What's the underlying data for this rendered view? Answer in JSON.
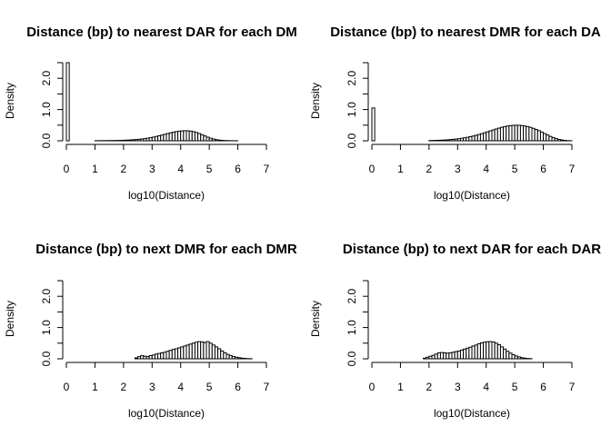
{
  "chart_data": [
    {
      "type": "bar",
      "title": "Distance (bp) to nearest DAR for each DM",
      "xlabel": "log10(Distance)",
      "ylabel": "Density",
      "xlim": [
        0,
        7
      ],
      "ylim": [
        0,
        2.5
      ],
      "xticks": [
        "0",
        "1",
        "2",
        "3",
        "4",
        "5",
        "6",
        "7"
      ],
      "yticks": [
        "0.0",
        "1.0",
        "2.0"
      ],
      "bin_width": 0.1,
      "bins": [
        [
          0.0,
          2.5
        ],
        [
          1.0,
          0.003
        ],
        [
          1.1,
          0.003
        ],
        [
          1.2,
          0.004
        ],
        [
          1.3,
          0.005
        ],
        [
          1.4,
          0.006
        ],
        [
          1.5,
          0.007
        ],
        [
          1.6,
          0.008
        ],
        [
          1.7,
          0.01
        ],
        [
          1.8,
          0.012
        ],
        [
          1.9,
          0.015
        ],
        [
          2.0,
          0.018
        ],
        [
          2.1,
          0.022
        ],
        [
          2.2,
          0.027
        ],
        [
          2.3,
          0.033
        ],
        [
          2.4,
          0.04
        ],
        [
          2.5,
          0.048
        ],
        [
          2.6,
          0.058
        ],
        [
          2.7,
          0.07
        ],
        [
          2.8,
          0.084
        ],
        [
          2.9,
          0.1
        ],
        [
          3.0,
          0.118
        ],
        [
          3.1,
          0.138
        ],
        [
          3.2,
          0.16
        ],
        [
          3.3,
          0.183
        ],
        [
          3.4,
          0.207
        ],
        [
          3.5,
          0.231
        ],
        [
          3.6,
          0.254
        ],
        [
          3.7,
          0.275
        ],
        [
          3.8,
          0.293
        ],
        [
          3.9,
          0.307
        ],
        [
          4.0,
          0.317
        ],
        [
          4.1,
          0.322
        ],
        [
          4.2,
          0.32
        ],
        [
          4.3,
          0.31
        ],
        [
          4.4,
          0.292
        ],
        [
          4.5,
          0.266
        ],
        [
          4.6,
          0.232
        ],
        [
          4.7,
          0.194
        ],
        [
          4.8,
          0.154
        ],
        [
          4.9,
          0.116
        ],
        [
          5.0,
          0.083
        ],
        [
          5.1,
          0.056
        ],
        [
          5.2,
          0.036
        ],
        [
          5.3,
          0.022
        ],
        [
          5.4,
          0.013
        ],
        [
          5.5,
          0.008
        ],
        [
          5.6,
          0.005
        ],
        [
          5.7,
          0.003
        ],
        [
          5.8,
          0.002
        ],
        [
          5.9,
          0.001
        ]
      ]
    },
    {
      "type": "bar",
      "title": "Distance (bp) to nearest DMR for each DA",
      "xlabel": "log10(Distance)",
      "ylabel": "Density",
      "xlim": [
        0,
        7
      ],
      "ylim": [
        0,
        2.5
      ],
      "xticks": [
        "0",
        "1",
        "2",
        "3",
        "4",
        "5",
        "6",
        "7"
      ],
      "yticks": [
        "0.0",
        "1.0",
        "2.0"
      ],
      "bin_width": 0.1,
      "bins": [
        [
          0.0,
          1.05
        ],
        [
          2.0,
          0.008
        ],
        [
          2.1,
          0.01
        ],
        [
          2.2,
          0.013
        ],
        [
          2.3,
          0.016
        ],
        [
          2.4,
          0.02
        ],
        [
          2.5,
          0.025
        ],
        [
          2.6,
          0.031
        ],
        [
          2.7,
          0.038
        ],
        [
          2.8,
          0.046
        ],
        [
          2.9,
          0.056
        ],
        [
          3.0,
          0.067
        ],
        [
          3.1,
          0.08
        ],
        [
          3.2,
          0.095
        ],
        [
          3.3,
          0.112
        ],
        [
          3.4,
          0.131
        ],
        [
          3.5,
          0.152
        ],
        [
          3.6,
          0.176
        ],
        [
          3.7,
          0.201
        ],
        [
          3.8,
          0.228
        ],
        [
          3.9,
          0.257
        ],
        [
          4.0,
          0.287
        ],
        [
          4.1,
          0.317
        ],
        [
          4.2,
          0.347
        ],
        [
          4.3,
          0.377
        ],
        [
          4.4,
          0.405
        ],
        [
          4.5,
          0.43
        ],
        [
          4.6,
          0.453
        ],
        [
          4.7,
          0.471
        ],
        [
          4.8,
          0.485
        ],
        [
          4.9,
          0.494
        ],
        [
          5.0,
          0.498
        ],
        [
          5.1,
          0.496
        ],
        [
          5.2,
          0.488
        ],
        [
          5.3,
          0.474
        ],
        [
          5.4,
          0.455
        ],
        [
          5.5,
          0.43
        ],
        [
          5.6,
          0.399
        ],
        [
          5.7,
          0.363
        ],
        [
          5.8,
          0.323
        ],
        [
          5.9,
          0.278
        ],
        [
          6.0,
          0.232
        ],
        [
          6.1,
          0.185
        ],
        [
          6.2,
          0.14
        ],
        [
          6.3,
          0.1
        ],
        [
          6.4,
          0.068
        ],
        [
          6.5,
          0.043
        ],
        [
          6.6,
          0.025
        ],
        [
          6.7,
          0.013
        ],
        [
          6.8,
          0.006
        ],
        [
          6.9,
          0.002
        ]
      ]
    },
    {
      "type": "bar",
      "title": "Distance (bp) to next DMR for each DMR",
      "xlabel": "log10(Distance)",
      "ylabel": "Density",
      "xlim": [
        0,
        7
      ],
      "ylim": [
        0,
        2.5
      ],
      "xticks": [
        "0",
        "1",
        "2",
        "3",
        "4",
        "5",
        "6",
        "7"
      ],
      "yticks": [
        "0.0",
        "1.0",
        "2.0"
      ],
      "bin_width": 0.1,
      "bins": [
        [
          2.4,
          0.03
        ],
        [
          2.5,
          0.07
        ],
        [
          2.6,
          0.1
        ],
        [
          2.7,
          0.08
        ],
        [
          2.8,
          0.07
        ],
        [
          2.9,
          0.1
        ],
        [
          3.0,
          0.12
        ],
        [
          3.1,
          0.15
        ],
        [
          3.2,
          0.17
        ],
        [
          3.3,
          0.19
        ],
        [
          3.4,
          0.21
        ],
        [
          3.5,
          0.24
        ],
        [
          3.6,
          0.27
        ],
        [
          3.7,
          0.3
        ],
        [
          3.8,
          0.32
        ],
        [
          3.9,
          0.35
        ],
        [
          4.0,
          0.38
        ],
        [
          4.1,
          0.41
        ],
        [
          4.2,
          0.44
        ],
        [
          4.3,
          0.47
        ],
        [
          4.4,
          0.5
        ],
        [
          4.5,
          0.53
        ],
        [
          4.6,
          0.55
        ],
        [
          4.7,
          0.54
        ],
        [
          4.8,
          0.52
        ],
        [
          4.9,
          0.55
        ],
        [
          5.0,
          0.5
        ],
        [
          5.1,
          0.44
        ],
        [
          5.2,
          0.38
        ],
        [
          5.3,
          0.32
        ],
        [
          5.4,
          0.25
        ],
        [
          5.5,
          0.19
        ],
        [
          5.6,
          0.14
        ],
        [
          5.7,
          0.1
        ],
        [
          5.8,
          0.07
        ],
        [
          5.9,
          0.05
        ],
        [
          6.0,
          0.035
        ],
        [
          6.1,
          0.02
        ],
        [
          6.2,
          0.012
        ],
        [
          6.3,
          0.006
        ],
        [
          6.4,
          0.003
        ]
      ]
    },
    {
      "type": "bar",
      "title": "Distance (bp) to next DAR for each DAR",
      "xlabel": "log10(Distance)",
      "ylabel": "Density",
      "xlim": [
        0,
        7
      ],
      "ylim": [
        0,
        2.5
      ],
      "xticks": [
        "0",
        "1",
        "2",
        "3",
        "4",
        "5",
        "6",
        "7"
      ],
      "yticks": [
        "0.0",
        "1.0",
        "2.0"
      ],
      "bin_width": 0.1,
      "bins": [
        [
          1.8,
          0.02
        ],
        [
          1.9,
          0.05
        ],
        [
          2.0,
          0.08
        ],
        [
          2.1,
          0.11
        ],
        [
          2.2,
          0.15
        ],
        [
          2.3,
          0.19
        ],
        [
          2.4,
          0.2
        ],
        [
          2.5,
          0.19
        ],
        [
          2.6,
          0.18
        ],
        [
          2.7,
          0.19
        ],
        [
          2.8,
          0.21
        ],
        [
          2.9,
          0.23
        ],
        [
          3.0,
          0.25
        ],
        [
          3.1,
          0.28
        ],
        [
          3.2,
          0.31
        ],
        [
          3.3,
          0.34
        ],
        [
          3.4,
          0.37
        ],
        [
          3.5,
          0.41
        ],
        [
          3.6,
          0.44
        ],
        [
          3.7,
          0.48
        ],
        [
          3.8,
          0.51
        ],
        [
          3.9,
          0.53
        ],
        [
          4.0,
          0.545
        ],
        [
          4.1,
          0.55
        ],
        [
          4.2,
          0.54
        ],
        [
          4.3,
          0.5
        ],
        [
          4.4,
          0.45
        ],
        [
          4.5,
          0.38
        ],
        [
          4.6,
          0.31
        ],
        [
          4.7,
          0.24
        ],
        [
          4.8,
          0.18
        ],
        [
          4.9,
          0.13
        ],
        [
          5.0,
          0.09
        ],
        [
          5.1,
          0.06
        ],
        [
          5.2,
          0.035
        ],
        [
          5.3,
          0.02
        ],
        [
          5.4,
          0.01
        ],
        [
          5.5,
          0.005
        ]
      ]
    }
  ]
}
